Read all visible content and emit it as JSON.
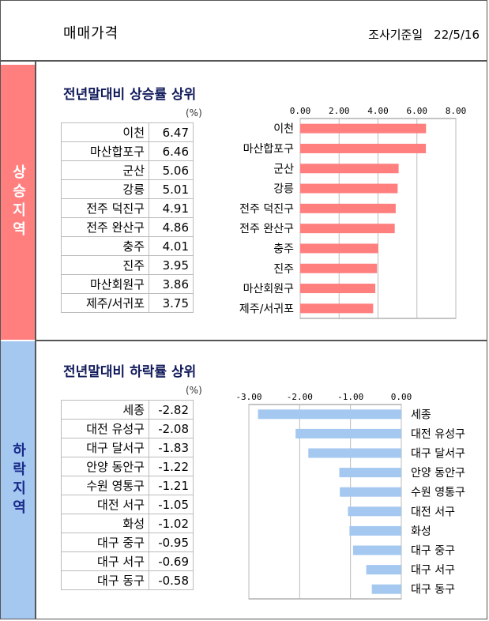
{
  "header": {
    "title": "매매가격",
    "date_label": "조사기준일",
    "date_value": "22/5/16"
  },
  "sections": {
    "rise": {
      "side_label": "상승지역",
      "title": "전년말대비 상승률 상위",
      "unit": "(%)",
      "rows": [
        {
          "name": "이천",
          "value": "6.47"
        },
        {
          "name": "마산합포구",
          "value": "6.46"
        },
        {
          "name": "군산",
          "value": "5.06"
        },
        {
          "name": "강릉",
          "value": "5.01"
        },
        {
          "name": "전주 덕진구",
          "value": "4.91"
        },
        {
          "name": "전주 완산구",
          "value": "4.86"
        },
        {
          "name": "충주",
          "value": "4.01"
        },
        {
          "name": "진주",
          "value": "3.95"
        },
        {
          "name": "마산회원구",
          "value": "3.86"
        },
        {
          "name": "제주/서귀포",
          "value": "3.75"
        }
      ]
    },
    "fall": {
      "side_label": "하락지역",
      "title": "전년말대비 하락률 상위",
      "unit": "(%)",
      "rows": [
        {
          "name": "세종",
          "value": "-2.82"
        },
        {
          "name": "대전 유성구",
          "value": "-2.08"
        },
        {
          "name": "대구 달서구",
          "value": "-1.83"
        },
        {
          "name": "안양 동안구",
          "value": "-1.22"
        },
        {
          "name": "수원 영통구",
          "value": "-1.21"
        },
        {
          "name": "대전 서구",
          "value": "-1.05"
        },
        {
          "name": "화성",
          "value": "-1.02"
        },
        {
          "name": "대구 중구",
          "value": "-0.95"
        },
        {
          "name": "대구 서구",
          "value": "-0.69"
        },
        {
          "name": "대구 동구",
          "value": "-0.58"
        }
      ]
    }
  },
  "chart_data": [
    {
      "type": "bar",
      "orientation": "horizontal",
      "categories": [
        "이천",
        "마산합포구",
        "군산",
        "강릉",
        "전주 덕진구",
        "전주 완산구",
        "충주",
        "진주",
        "마산회원구",
        "제주/서귀포"
      ],
      "values": [
        6.47,
        6.46,
        5.06,
        5.01,
        4.91,
        4.86,
        4.01,
        3.95,
        3.86,
        3.75
      ],
      "xlim": [
        0,
        8
      ],
      "xticks": [
        "0.00",
        "2.00",
        "4.00",
        "6.00",
        "8.00"
      ],
      "xaxis_position": "top",
      "grid": true,
      "bar_color": "#ff7f7f"
    },
    {
      "type": "bar",
      "orientation": "horizontal",
      "categories": [
        "세종",
        "대전 유성구",
        "대구 달서구",
        "안양 동안구",
        "수원 영통구",
        "대전 서구",
        "화성",
        "대구 중구",
        "대구 서구",
        "대구 동구"
      ],
      "values": [
        -2.82,
        -2.08,
        -1.83,
        -1.22,
        -1.21,
        -1.05,
        -1.02,
        -0.95,
        -0.69,
        -0.58
      ],
      "xlim": [
        -3,
        0
      ],
      "xticks": [
        "-3.00",
        "-2.00",
        "-1.00",
        "0.00"
      ],
      "xaxis_position": "top",
      "grid": true,
      "bar_color": "#a4c8f0"
    }
  ]
}
